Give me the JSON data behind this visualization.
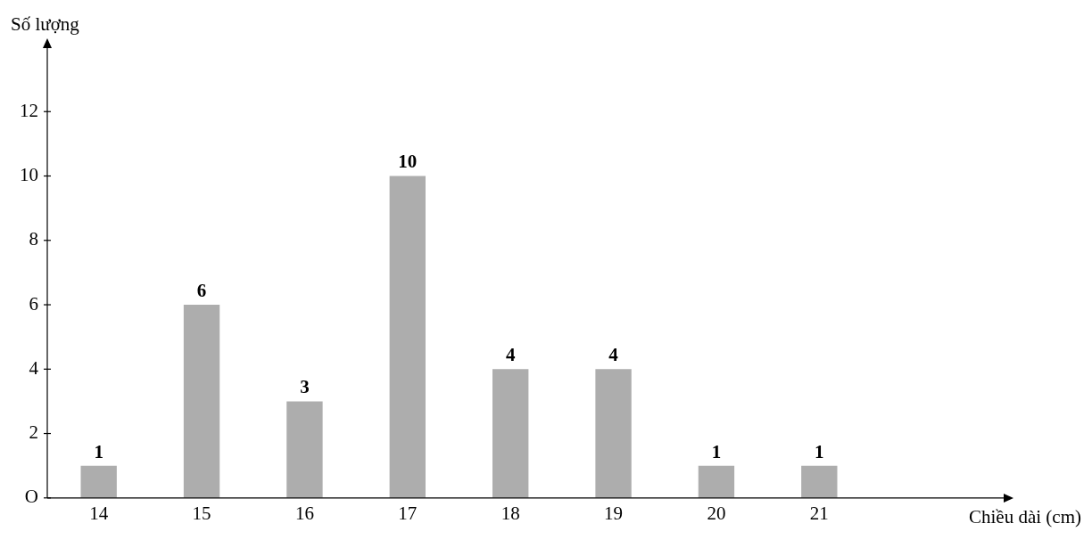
{
  "chart_data": {
    "type": "bar",
    "annotations": [
      "Chiều dài (cm)"
    ],
    "ylabel": "Số lượng",
    "categories": [
      "14",
      "15",
      "16",
      "17",
      "18",
      "19",
      "20",
      "21"
    ],
    "values": [
      1,
      6,
      3,
      10,
      4,
      4,
      1,
      1
    ],
    "color": "#adadad",
    "ylim": [
      0,
      14
    ],
    "yticks": [
      {
        "value": 0,
        "label": "O"
      },
      2,
      4,
      6,
      8,
      10,
      12
    ],
    "grid": false,
    "legend": false,
    "data_labels": true
  }
}
